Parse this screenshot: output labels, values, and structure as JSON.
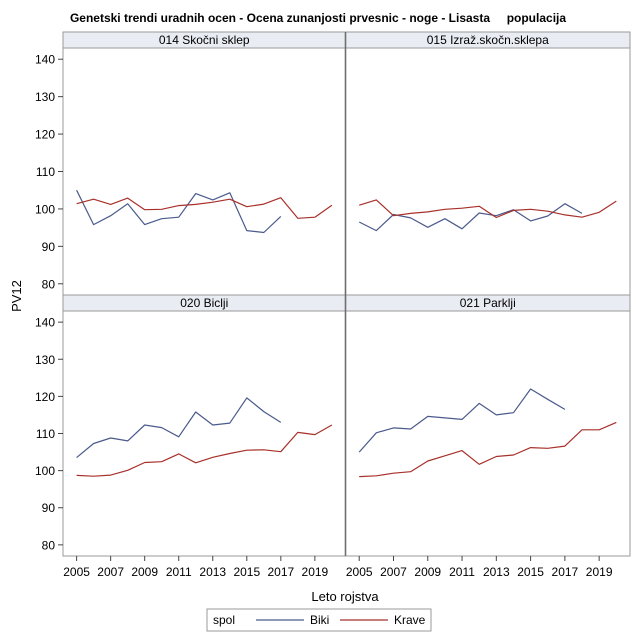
{
  "chart_data": {
    "type": "line",
    "title": "Genetski trendi uradnih ocen - Ocena zunanjosti prvesnic - noge - Lisasta     populacija",
    "xlabel": "Leto rojstva",
    "ylabel": "PV12",
    "ylim": [
      77,
      143
    ],
    "yticks": [
      80,
      90,
      100,
      110,
      120,
      130,
      140
    ],
    "xlim": [
      2004.2,
      2020.8
    ],
    "xticks": [
      2005,
      2007,
      2009,
      2011,
      2013,
      2015,
      2017,
      2019
    ],
    "grid": false,
    "legend": {
      "title": "spol",
      "position": "bottom",
      "entries": [
        "Biki",
        "Krave"
      ]
    },
    "colors": {
      "Biki": "#4a5a8c",
      "Krave": "#a8302a"
    },
    "panels": [
      {
        "title": "014 Skočni sklep",
        "series": [
          {
            "name": "Biki",
            "x": [
              2005,
              2006,
              2007,
              2008,
              2009,
              2010,
              2011,
              2012,
              2013,
              2014,
              2015,
              2016,
              2017
            ],
            "values": [
              105.0,
              95.8,
              98.2,
              101.4,
              95.8,
              97.4,
              97.8,
              104.1,
              102.4,
              104.3,
              94.2,
              93.7,
              98.0
            ]
          },
          {
            "name": "Krave",
            "x": [
              2005,
              2006,
              2007,
              2008,
              2009,
              2010,
              2011,
              2012,
              2013,
              2014,
              2015,
              2016,
              2017,
              2018,
              2019,
              2020
            ],
            "values": [
              101.4,
              102.6,
              101.2,
              102.9,
              99.8,
              99.9,
              100.9,
              101.2,
              101.8,
              102.6,
              100.6,
              101.3,
              103.0,
              97.5,
              97.8,
              101.0
            ]
          }
        ]
      },
      {
        "title": "015 Izraž.skočn.sklepa",
        "series": [
          {
            "name": "Biki",
            "x": [
              2005,
              2006,
              2007,
              2008,
              2009,
              2010,
              2011,
              2012,
              2013,
              2014,
              2015,
              2016,
              2017,
              2018
            ],
            "values": [
              96.5,
              94.2,
              98.5,
              97.6,
              95.1,
              97.4,
              94.7,
              98.9,
              98.2,
              99.8,
              96.8,
              98.1,
              101.4,
              98.8
            ]
          },
          {
            "name": "Krave",
            "x": [
              2005,
              2006,
              2007,
              2008,
              2009,
              2010,
              2011,
              2012,
              2013,
              2014,
              2015,
              2016,
              2017,
              2018,
              2019,
              2020
            ],
            "values": [
              101.0,
              102.4,
              98.2,
              98.8,
              99.2,
              99.9,
              100.2,
              100.7,
              97.7,
              99.6,
              99.9,
              99.4,
              98.4,
              97.8,
              99.1,
              102.1
            ]
          }
        ]
      },
      {
        "title": "020 Biclji",
        "series": [
          {
            "name": "Biki",
            "x": [
              2005,
              2006,
              2007,
              2008,
              2009,
              2010,
              2011,
              2012,
              2013,
              2014,
              2015,
              2016,
              2017
            ],
            "values": [
              103.5,
              107.3,
              108.8,
              108.0,
              112.3,
              111.6,
              109.1,
              115.8,
              112.3,
              112.8,
              119.6,
              115.9,
              113.0
            ]
          },
          {
            "name": "Krave",
            "x": [
              2005,
              2006,
              2007,
              2008,
              2009,
              2010,
              2011,
              2012,
              2013,
              2014,
              2015,
              2016,
              2017,
              2018,
              2019,
              2020
            ],
            "values": [
              98.7,
              98.5,
              98.8,
              100.1,
              102.2,
              102.4,
              104.5,
              102.1,
              103.6,
              104.6,
              105.5,
              105.6,
              105.1,
              110.3,
              109.7,
              112.3
            ]
          }
        ]
      },
      {
        "title": "021 Parklji",
        "series": [
          {
            "name": "Biki",
            "x": [
              2005,
              2006,
              2007,
              2008,
              2009,
              2010,
              2011,
              2012,
              2013,
              2014,
              2015,
              2016,
              2017
            ],
            "values": [
              105.0,
              110.2,
              111.5,
              111.2,
              114.6,
              114.2,
              113.8,
              118.1,
              115.0,
              115.6,
              122.0,
              119.2,
              116.5
            ]
          },
          {
            "name": "Krave",
            "x": [
              2005,
              2006,
              2007,
              2008,
              2009,
              2010,
              2011,
              2012,
              2013,
              2014,
              2015,
              2016,
              2017,
              2018,
              2019,
              2020
            ],
            "values": [
              98.4,
              98.6,
              99.3,
              99.7,
              102.6,
              104.0,
              105.4,
              101.7,
              103.8,
              104.2,
              106.2,
              106.0,
              106.6,
              111.0,
              111.0,
              113.0
            ]
          }
        ]
      }
    ]
  }
}
